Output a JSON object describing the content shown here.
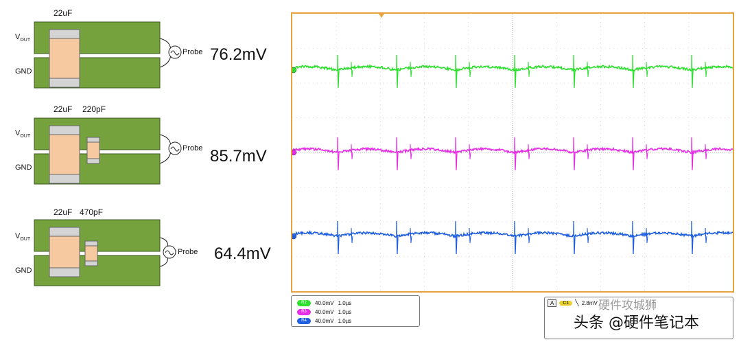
{
  "diagrams": [
    {
      "cap_labels": [
        "22uF"
      ],
      "vout_label": "V",
      "vout_sub": "OUT",
      "gnd_label": "GND",
      "probe_label": "Probe",
      "reading": "76.2mV"
    },
    {
      "cap_labels": [
        "22uF",
        "220pF"
      ],
      "vout_label": "V",
      "vout_sub": "OUT",
      "gnd_label": "GND",
      "probe_label": "Probe",
      "reading": "85.7mV"
    },
    {
      "cap_labels": [
        "22uF",
        "470pF"
      ],
      "vout_label": "V",
      "vout_sub": "OUT",
      "gnd_label": "GND",
      "probe_label": "Probe",
      "reading": "64.4mV"
    }
  ],
  "colors": {
    "board": "#76a23e",
    "board_edge": "#3b5a1c",
    "cap_body": "#f7c9a0",
    "cap_end": "#d4d4d4",
    "scope_border": "#e6a23c",
    "trace_green": "#2ee02e",
    "trace_magenta": "#e62ee6",
    "trace_blue": "#1f5fe0"
  },
  "scope": {
    "channels": [
      {
        "marker": "R2",
        "color": "#2ee02e",
        "scale": "40.0mV",
        "time": "1.0µs"
      },
      {
        "marker": "R3",
        "color": "#e62ee6",
        "scale": "40.0mV",
        "time": "1.0µs"
      },
      {
        "marker": "R4",
        "color": "#1f5fe0",
        "scale": "40.0mV",
        "time": "1.0µs"
      }
    ],
    "trigger": {
      "mode": "A",
      "channel": "C1",
      "level": "2.8mV"
    }
  },
  "watermark": {
    "main": "头条 @硬件笔记本",
    "top": "硬件攻城狮"
  }
}
